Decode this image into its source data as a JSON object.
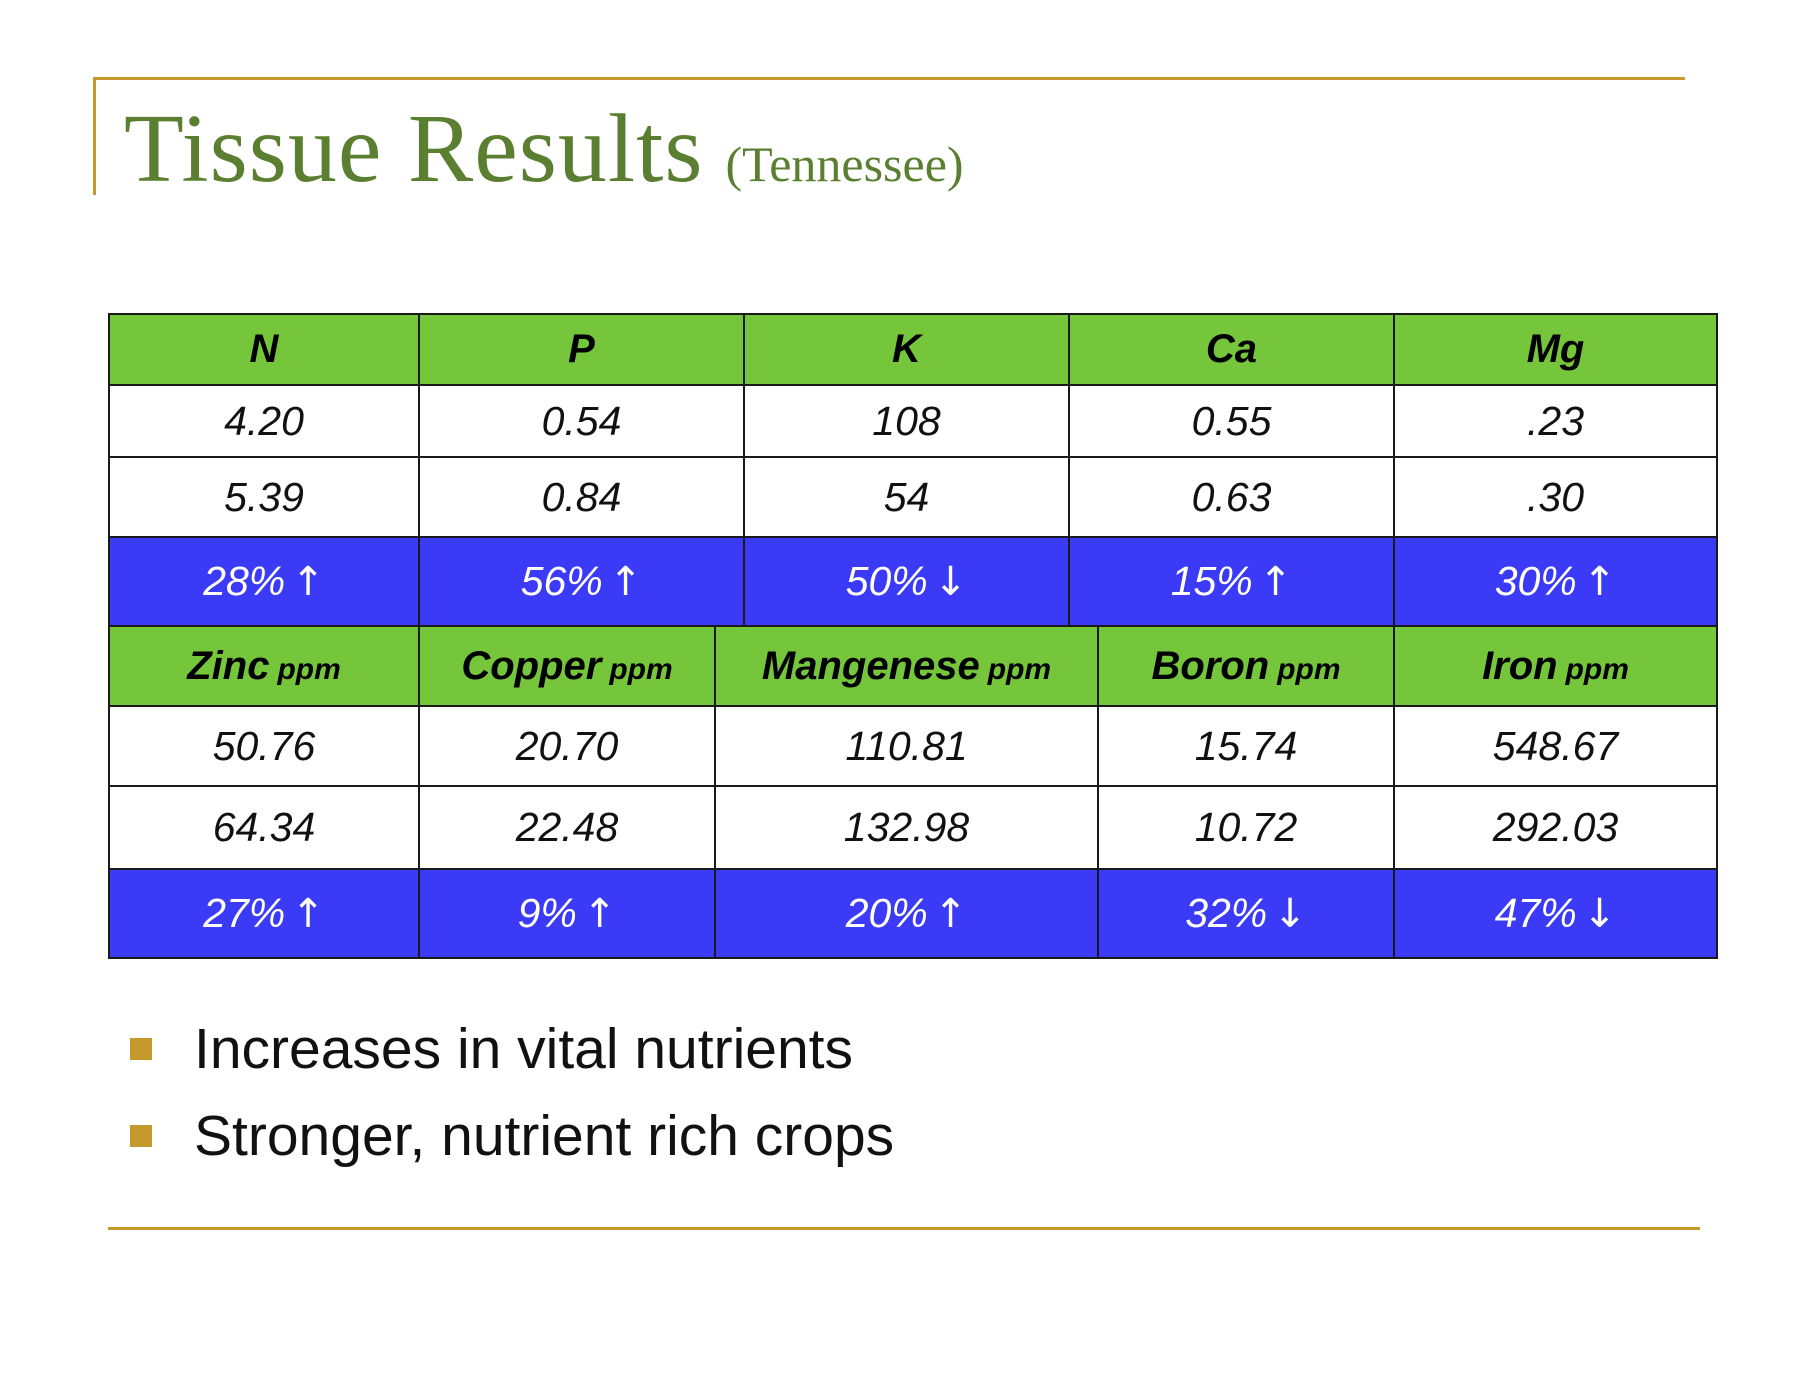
{
  "slide": {
    "title": "Tissue Results",
    "subtitle": "(Tennessee)"
  },
  "macro_table": {
    "headers": [
      {
        "name": "N"
      },
      {
        "name": "P"
      },
      {
        "name": "K"
      },
      {
        "name": "Ca"
      },
      {
        "name": "Mg"
      }
    ],
    "row1": [
      "4.20",
      "0.54",
      "108",
      "0.55",
      ".23"
    ],
    "row2": [
      "5.39",
      "0.84",
      "54",
      "0.63",
      ".30"
    ],
    "changes": [
      {
        "value": "28%",
        "arrow": "↑"
      },
      {
        "value": "56%",
        "arrow": "↑"
      },
      {
        "value": "50%",
        "arrow": "↓"
      },
      {
        "value": "15%",
        "arrow": "↑"
      },
      {
        "value": "30%",
        "arrow": "↑"
      }
    ]
  },
  "micro_table": {
    "headers": [
      {
        "name": "Zinc",
        "unit": "ppm"
      },
      {
        "name": "Copper",
        "unit": "ppm"
      },
      {
        "name": "Mangenese",
        "unit": "ppm"
      },
      {
        "name": "Boron",
        "unit": "ppm"
      },
      {
        "name": "Iron",
        "unit": "ppm"
      }
    ],
    "row1": [
      "50.76",
      "20.70",
      "110.81",
      "15.74",
      "548.67"
    ],
    "row2": [
      "64.34",
      "22.48",
      "132.98",
      "10.72",
      "292.03"
    ],
    "changes": [
      {
        "value": "27%",
        "arrow": "↑"
      },
      {
        "value": "9%",
        "arrow": "↑"
      },
      {
        "value": "20%",
        "arrow": "↑"
      },
      {
        "value": "32%",
        "arrow": "↓"
      },
      {
        "value": "47%",
        "arrow": "↓"
      }
    ]
  },
  "bullets": [
    "Increases in vital nutrients",
    "Stronger, nutrient rich crops"
  ],
  "colors": {
    "title": "#5b7f31",
    "accent_rule": "#c39a2b",
    "header_fill": "#76c63b",
    "change_fill": "#3a3af7"
  }
}
